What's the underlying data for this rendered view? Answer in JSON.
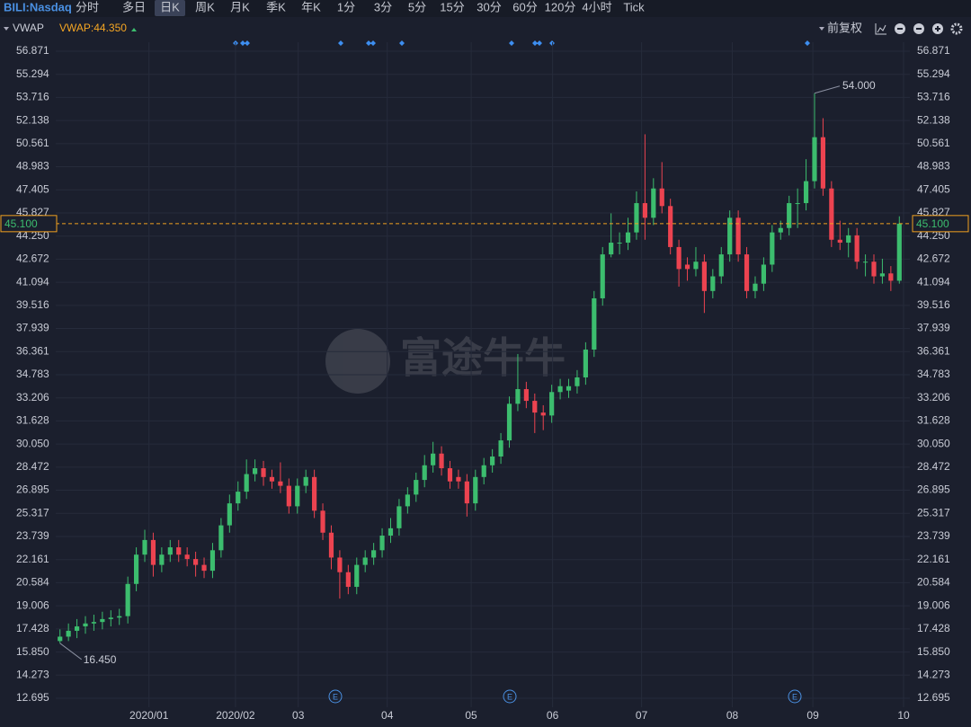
{
  "toolbar": {
    "symbol": "BILI:Nasdaq",
    "tabs": [
      "分时",
      "多日",
      "日K",
      "周K",
      "月K",
      "季K",
      "年K",
      "1分",
      "3分",
      "5分",
      "15分",
      "30分",
      "60分",
      "120分",
      "4小时",
      "Tick"
    ],
    "active_tab": "日K",
    "indicator": "VWAP",
    "indicator_value": "VWAP:44.350",
    "adjust": "前复权"
  },
  "watermark": "富途牛牛",
  "events": [
    "E",
    "E",
    "E"
  ],
  "chart_data": {
    "type": "candlestick",
    "up_color": "#3cbd6e",
    "down_color": "#ec4350",
    "grid": true,
    "price_line_color": "#f0a020",
    "open": [
      16.6,
      16.9,
      17.3,
      17.6,
      17.8,
      17.9,
      18.1,
      18.2,
      18.3,
      20.5,
      22.5,
      23.5,
      21.8,
      22.5,
      23.0,
      22.5,
      22.2,
      21.8,
      21.4,
      22.8,
      24.5,
      26.0,
      26.8,
      28.0,
      28.4,
      27.8,
      27.5,
      27.2,
      25.8,
      27.2,
      27.8,
      25.5,
      24.0,
      22.3,
      21.3,
      20.3,
      21.8,
      22.3,
      22.8,
      23.8,
      24.3,
      25.8,
      26.6,
      27.6,
      28.6,
      29.4,
      28.4,
      27.8,
      27.5,
      26.0,
      27.8,
      28.6,
      29.2,
      30.3,
      32.8,
      33.8,
      33.0,
      32.2,
      32.0,
      33.6,
      33.7,
      34.0,
      34.6,
      36.5,
      40.0,
      43.0,
      43.8,
      43.8,
      44.5,
      46.5,
      45.5,
      47.5,
      46.3,
      43.5,
      42.3,
      42.0,
      42.5,
      40.5,
      41.5,
      43.0,
      45.5,
      43.0,
      40.5,
      41.0,
      42.3,
      44.5,
      44.8,
      46.5,
      46.5,
      48.0,
      51.0,
      47.5,
      44.0,
      43.8,
      44.3,
      42.5,
      42.5,
      41.5,
      41.7,
      41.2
    ],
    "high": [
      17.4,
      17.8,
      18.1,
      18.3,
      18.4,
      18.6,
      18.7,
      18.8,
      21.0,
      23.0,
      24.2,
      24.0,
      23.0,
      23.5,
      23.5,
      23.0,
      22.7,
      22.3,
      23.3,
      25.0,
      26.6,
      27.5,
      29.0,
      29.0,
      28.9,
      28.3,
      28.8,
      27.7,
      27.7,
      28.3,
      28.3,
      26.0,
      24.5,
      22.8,
      21.8,
      22.3,
      22.8,
      23.3,
      24.3,
      25.0,
      26.3,
      27.1,
      28.1,
      29.3,
      30.2,
      29.9,
      28.9,
      28.3,
      28.0,
      28.3,
      29.1,
      29.7,
      30.8,
      33.3,
      36.2,
      34.3,
      33.5,
      32.7,
      34.1,
      34.5,
      34.5,
      35.1,
      37.0,
      40.5,
      43.5,
      45.8,
      44.5,
      45.5,
      47.3,
      51.2,
      48.2,
      49.3,
      46.8,
      44.0,
      42.8,
      43.5,
      43.0,
      42.0,
      43.5,
      46.0,
      46.0,
      43.5,
      41.5,
      42.8,
      45.0,
      45.3,
      47.0,
      47.5,
      49.5,
      54.0,
      52.3,
      48.0,
      45.3,
      44.8,
      44.8,
      43.0,
      43.0,
      42.7,
      42.2,
      45.6
    ],
    "low": [
      16.45,
      16.6,
      16.8,
      17.1,
      17.3,
      17.4,
      17.6,
      17.7,
      17.8,
      20.0,
      22.0,
      21.0,
      21.3,
      22.0,
      22.0,
      21.7,
      21.0,
      20.9,
      20.9,
      22.3,
      24.0,
      25.5,
      26.3,
      27.5,
      27.2,
      27.0,
      26.7,
      25.3,
      25.3,
      26.7,
      25.0,
      23.5,
      21.5,
      19.5,
      19.8,
      19.8,
      21.3,
      21.8,
      22.3,
      23.3,
      23.8,
      25.3,
      26.1,
      27.1,
      28.1,
      27.9,
      27.0,
      27.0,
      25.1,
      25.5,
      27.3,
      28.1,
      28.7,
      29.8,
      32.3,
      32.5,
      30.8,
      31.0,
      31.5,
      33.1,
      33.2,
      33.5,
      34.1,
      36.0,
      39.5,
      42.8,
      43.0,
      43.3,
      44.0,
      44.0,
      45.0,
      45.8,
      43.0,
      40.8,
      41.2,
      41.5,
      39.0,
      40.0,
      41.0,
      42.5,
      42.5,
      40.0,
      40.0,
      40.5,
      41.8,
      44.0,
      44.3,
      44.8,
      46.0,
      47.5,
      47.0,
      43.5,
      43.3,
      42.8,
      42.0,
      41.5,
      41.0,
      41.0,
      40.5,
      41.0
    ],
    "close": [
      16.9,
      17.3,
      17.6,
      17.8,
      17.9,
      18.1,
      18.2,
      18.3,
      20.5,
      22.5,
      23.5,
      21.8,
      22.5,
      23.0,
      22.5,
      22.2,
      21.8,
      21.4,
      22.8,
      24.5,
      26.0,
      26.8,
      28.0,
      28.4,
      27.8,
      27.5,
      27.2,
      25.8,
      27.2,
      27.8,
      25.5,
      24.0,
      22.3,
      21.3,
      20.3,
      21.8,
      22.3,
      22.8,
      23.8,
      24.3,
      25.8,
      26.6,
      27.6,
      28.6,
      29.4,
      28.4,
      27.5,
      27.5,
      26.0,
      27.8,
      28.6,
      29.2,
      30.3,
      32.8,
      33.8,
      33.0,
      32.2,
      32.0,
      33.6,
      34.0,
      34.0,
      34.6,
      36.5,
      40.0,
      43.0,
      43.8,
      43.8,
      44.5,
      46.5,
      45.5,
      47.5,
      46.3,
      43.5,
      42.0,
      42.0,
      42.5,
      40.5,
      41.5,
      43.0,
      45.5,
      43.0,
      40.5,
      41.0,
      42.3,
      44.5,
      44.8,
      46.5,
      46.5,
      48.0,
      51.0,
      47.5,
      44.0,
      43.8,
      44.3,
      42.5,
      42.5,
      41.5,
      41.7,
      41.2,
      45.1
    ],
    "xlim": [
      0,
      100
    ],
    "xticks": [
      {
        "value": 11,
        "label": "2020/01"
      },
      {
        "value": 21.2,
        "label": "2020/02"
      },
      {
        "value": 28.6,
        "label": "03"
      },
      {
        "value": 39.1,
        "label": "04"
      },
      {
        "value": 49,
        "label": "05"
      },
      {
        "value": 58.6,
        "label": "06"
      },
      {
        "value": 69.1,
        "label": "07"
      },
      {
        "value": 79.8,
        "label": "08"
      },
      {
        "value": 89.3,
        "label": "09"
      },
      {
        "value": 100,
        "label": "10"
      }
    ],
    "ylim": [
      12.695,
      56.871
    ],
    "yticks": [
      56.871,
      55.294,
      53.716,
      52.138,
      50.561,
      48.983,
      47.405,
      45.827,
      {
        "value": 44.25,
        "label": "44.250"
      },
      42.672,
      41.094,
      39.516,
      37.939,
      36.361,
      34.783,
      33.206,
      31.628,
      {
        "value": 30.05,
        "label": "30.050"
      },
      28.472,
      26.895,
      25.317,
      23.739,
      22.161,
      20.584,
      19.006,
      17.428,
      {
        "value": 15.85,
        "label": "15.850"
      },
      14.273,
      12.695
    ],
    "last_price": {
      "value": 45.1,
      "label": "45.100"
    },
    "max_label": {
      "value": 54,
      "label": "54.000"
    },
    "min_label": {
      "value": 16.45,
      "label": "16.450"
    }
  }
}
